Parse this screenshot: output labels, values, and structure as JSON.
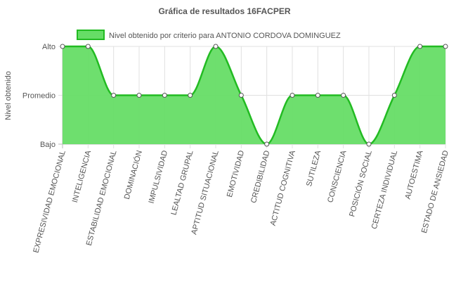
{
  "chart_data": {
    "type": "line",
    "title": "Gráfica de resultados 16FACPER",
    "ylabel": "Nivel obtenido",
    "xlabel": "",
    "y_levels": [
      "Bajo",
      "Promedio",
      "Alto"
    ],
    "ylim": [
      0,
      2
    ],
    "categories": [
      "EXPRESIVIDAD EMOCIONAL",
      "INTELIGENCIA",
      "ESTABILIDAD EMOCIONAL",
      "DOMINACIÓN",
      "IMPULSIVIDAD",
      "LEALTAD GRUPAL",
      "APTITUD SITUACIONAL",
      "EMOTIVIDAD",
      "CREDIBILIDAD",
      "ACTITUD COGNITIVA",
      "SUTILEZA",
      "CONSCIENCIA",
      "POSICIÓN SOCIAL",
      "CERTEZA INDIVIDUAL",
      "AUTOESTIMA",
      "ESTADO DE ANSIEDAD"
    ],
    "series": [
      {
        "name": "Nivel obtenido por criterio para ANTONIO CORDOVA DOMINGUEZ",
        "values": [
          2,
          2,
          1,
          1,
          1,
          1,
          2,
          1,
          0,
          1,
          1,
          1,
          0,
          1,
          2,
          2
        ]
      }
    ],
    "grid": true,
    "legend_position": "top",
    "colors": {
      "fill": "#66dd66",
      "line": "#22bb22",
      "grid": "#e0e0e0",
      "axis": "#bbbbbb"
    }
  }
}
